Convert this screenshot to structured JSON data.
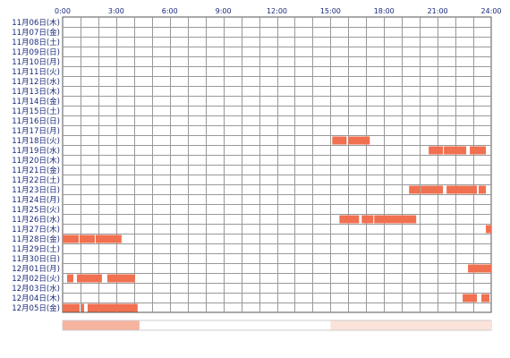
{
  "chart_data": {
    "type": "heatmap",
    "title": "",
    "xlabel": "",
    "ylabel": "",
    "xlim": [
      0,
      24
    ],
    "x_ticks": [
      "0:00",
      "3:00",
      "6:00",
      "9:00",
      "12:00",
      "15:00",
      "18:00",
      "21:00",
      "24:00"
    ],
    "grid": true,
    "colors": {
      "bar": "#f07050",
      "grid": "#999999",
      "frame": "#555555",
      "text": "#1a2a7a",
      "summary_strong": "#f6b39e",
      "summary_weak": "#fbe3da"
    },
    "rows": [
      {
        "label": "11月06日(木)",
        "intervals": []
      },
      {
        "label": "11月07日(金)",
        "intervals": []
      },
      {
        "label": "11月08日(土)",
        "intervals": []
      },
      {
        "label": "11月09日(日)",
        "intervals": []
      },
      {
        "label": "11月10日(月)",
        "intervals": []
      },
      {
        "label": "11月11日(火)",
        "intervals": []
      },
      {
        "label": "11月12日(水)",
        "intervals": []
      },
      {
        "label": "11月13日(木)",
        "intervals": []
      },
      {
        "label": "11月14日(金)",
        "intervals": []
      },
      {
        "label": "11月15日(土)",
        "intervals": []
      },
      {
        "label": "11月16日(日)",
        "intervals": []
      },
      {
        "label": "11月17日(月)",
        "intervals": []
      },
      {
        "label": "11月18日(火)",
        "intervals": [
          [
            15.1,
            15.9
          ],
          [
            16.0,
            17.2
          ]
        ]
      },
      {
        "label": "11月19日(水)",
        "intervals": [
          [
            20.5,
            21.3
          ],
          [
            21.35,
            22.6
          ],
          [
            22.8,
            23.7
          ]
        ]
      },
      {
        "label": "11月20日(木)",
        "intervals": []
      },
      {
        "label": "11月21日(金)",
        "intervals": []
      },
      {
        "label": "11月22日(土)",
        "intervals": []
      },
      {
        "label": "11月23日(日)",
        "intervals": [
          [
            19.4,
            20.0
          ],
          [
            20.05,
            21.3
          ],
          [
            21.5,
            23.2
          ],
          [
            23.3,
            23.7
          ]
        ]
      },
      {
        "label": "11月24日(月)",
        "intervals": []
      },
      {
        "label": "11月25日(火)",
        "intervals": []
      },
      {
        "label": "11月26日(水)",
        "intervals": [
          [
            15.5,
            16.6
          ],
          [
            16.75,
            17.4
          ],
          [
            17.45,
            19.8
          ]
        ]
      },
      {
        "label": "11月27日(木)",
        "intervals": [
          [
            23.7,
            24.0
          ]
        ]
      },
      {
        "label": "11月28日(金)",
        "intervals": [
          [
            0.0,
            0.9
          ],
          [
            0.95,
            1.8
          ],
          [
            1.85,
            3.3
          ]
        ]
      },
      {
        "label": "11月29日(土)",
        "intervals": []
      },
      {
        "label": "11月30日(日)",
        "intervals": []
      },
      {
        "label": "12月01日(月)",
        "intervals": [
          [
            22.7,
            24.0
          ]
        ]
      },
      {
        "label": "12月02日(火)",
        "intervals": [
          [
            0.25,
            0.6
          ],
          [
            0.8,
            2.2
          ],
          [
            2.5,
            4.05
          ]
        ]
      },
      {
        "label": "12月03日(水)",
        "intervals": []
      },
      {
        "label": "12月04日(木)",
        "intervals": [
          [
            22.4,
            23.2
          ],
          [
            23.45,
            23.9
          ]
        ]
      },
      {
        "label": "12月05日(金)",
        "intervals": [
          [
            0.0,
            0.95
          ],
          [
            1.05,
            1.2
          ],
          [
            1.4,
            4.2
          ]
        ]
      }
    ],
    "summary_bands": [
      {
        "start": 0.0,
        "end": 4.3,
        "level": "strong"
      },
      {
        "start": 15.0,
        "end": 24.0,
        "level": "weak"
      }
    ]
  }
}
